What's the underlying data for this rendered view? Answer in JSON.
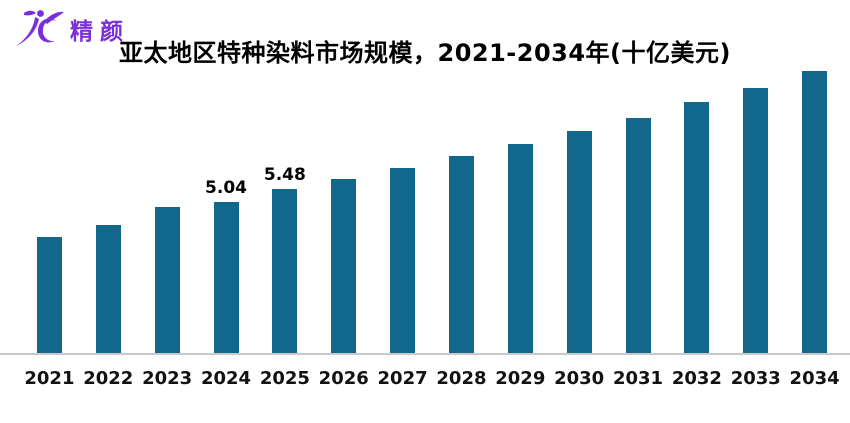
{
  "logo": {
    "brand_text": "精颜",
    "color": "#7b2fdb",
    "mark_icon": "jc-logo-icon"
  },
  "header": {
    "title": "亚太地区特种染料市场规模，2021-2034年(十亿美元)"
  },
  "chart_data": {
    "type": "bar",
    "title": "亚太地区特种染料市场规模，2021-2034年(十亿美元)",
    "categories": [
      "2021",
      "2022",
      "2023",
      "2024",
      "2025",
      "2026",
      "2027",
      "2028",
      "2029",
      "2030",
      "2031",
      "2032",
      "2033",
      "2034"
    ],
    "values": [
      3.88,
      4.25,
      4.85,
      5.04,
      5.48,
      5.8,
      6.17,
      6.56,
      6.97,
      7.41,
      7.84,
      8.36,
      8.84,
      9.4
    ],
    "visible_data_labels": [
      {
        "category": "2024",
        "label": "5.04"
      },
      {
        "category": "2025",
        "label": "5.48"
      }
    ],
    "xlabel": "",
    "ylabel": "",
    "ylim": [
      0,
      10
    ],
    "grid": false,
    "legend": false,
    "bar_color": "#11688c",
    "axis_line_color": "#c9c9c9",
    "unit": "十亿美元"
  }
}
